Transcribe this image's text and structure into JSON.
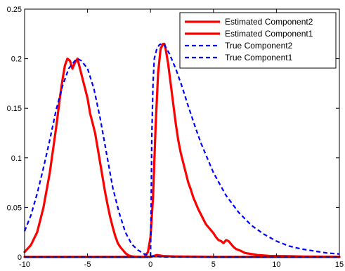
{
  "chart_data": {
    "type": "line",
    "xlim": [
      -10,
      15
    ],
    "ylim": [
      0,
      0.25
    ],
    "xticks": [
      "-10",
      "-5",
      "0",
      "5",
      "10",
      "15"
    ],
    "yticks": [
      "0",
      "0.05",
      "0.1",
      "0.15",
      "0.2",
      "0.25"
    ],
    "xtick_values": [
      -10,
      -5,
      0,
      5,
      10,
      15
    ],
    "ytick_values": [
      0,
      0.05,
      0.1,
      0.15,
      0.2,
      0.25
    ],
    "grid": false,
    "legend_position": "top-right",
    "series": [
      {
        "name": "Estimated Component2",
        "color": "#ff0000",
        "style": "solid",
        "x": [
          -10,
          -9.5,
          -9,
          -8.5,
          -8,
          -7.5,
          -7.2,
          -7,
          -6.8,
          -6.6,
          -6.4,
          -6.2,
          -6,
          -5.8,
          -5.6,
          -5.4,
          -5.2,
          -5,
          -4.8,
          -4.6,
          -4.4,
          -4.2,
          -4,
          -3.8,
          -3.6,
          -3.4,
          -3.2,
          -3,
          -2.8,
          -2.6,
          -2.4,
          -2.2,
          -2,
          -1.8,
          -1.6,
          -1.4,
          -1.2,
          -1,
          -0.8,
          -0.6,
          -0.4,
          -0.2,
          0,
          0.5,
          1,
          2,
          5,
          10,
          15
        ],
        "y": [
          0.005,
          0.012,
          0.025,
          0.05,
          0.085,
          0.13,
          0.16,
          0.178,
          0.193,
          0.2,
          0.198,
          0.19,
          0.196,
          0.2,
          0.19,
          0.18,
          0.17,
          0.16,
          0.145,
          0.135,
          0.125,
          0.11,
          0.095,
          0.08,
          0.065,
          0.052,
          0.04,
          0.03,
          0.021,
          0.014,
          0.01,
          0.007,
          0.004,
          0.002,
          0.001,
          0.0005,
          0.0002,
          0.0001,
          0,
          0,
          0,
          0,
          0,
          0.002,
          0.001,
          0.0005,
          0,
          0,
          0
        ]
      },
      {
        "name": "Estimated Component1",
        "color": "#ff0000",
        "style": "solid",
        "x": [
          -10,
          -5,
          -2,
          -1,
          -0.5,
          -0.2,
          0,
          0.2,
          0.4,
          0.6,
          0.8,
          1,
          1.1,
          1.2,
          1.4,
          1.6,
          1.8,
          2,
          2.2,
          2.4,
          2.6,
          2.8,
          3,
          3.2,
          3.4,
          3.6,
          3.8,
          4,
          4.2,
          4.4,
          4.6,
          4.8,
          5,
          5.2,
          5.4,
          5.6,
          5.8,
          6,
          6.2,
          6.4,
          6.6,
          6.8,
          7,
          7.2,
          7.5,
          8,
          8.5,
          9,
          9.5,
          10,
          11,
          12,
          13,
          15
        ],
        "y": [
          0,
          0,
          0,
          0,
          0,
          0.005,
          0.02,
          0.06,
          0.13,
          0.185,
          0.21,
          0.215,
          0.215,
          0.21,
          0.195,
          0.175,
          0.155,
          0.135,
          0.118,
          0.105,
          0.095,
          0.085,
          0.075,
          0.068,
          0.06,
          0.054,
          0.048,
          0.043,
          0.038,
          0.033,
          0.03,
          0.027,
          0.024,
          0.02,
          0.017,
          0.016,
          0.014,
          0.017,
          0.016,
          0.013,
          0.01,
          0.008,
          0.007,
          0.006,
          0.004,
          0.003,
          0.002,
          0.0015,
          0.001,
          0.001,
          0.0008,
          0.0005,
          0.0003,
          0
        ]
      },
      {
        "name": "True Component2",
        "color": "#0000ff",
        "style": "dashed",
        "x": [
          -10,
          -9.5,
          -9,
          -8.5,
          -8,
          -7.5,
          -7,
          -6.5,
          -6,
          -5.8,
          -5.5,
          -5,
          -4.5,
          -4,
          -3.5,
          -3,
          -2.5,
          -2,
          -1.5,
          -1,
          -0.5,
          0,
          1,
          5,
          15
        ],
        "y": [
          0.026,
          0.042,
          0.064,
          0.09,
          0.118,
          0.148,
          0.172,
          0.19,
          0.198,
          0.2,
          0.198,
          0.19,
          0.17,
          0.14,
          0.105,
          0.07,
          0.045,
          0.025,
          0.013,
          0.007,
          0.003,
          0.001,
          0,
          0,
          0
        ]
      },
      {
        "name": "True Component1",
        "color": "#0000ff",
        "style": "dashed",
        "x": [
          -10,
          -1,
          0,
          0.05,
          0.1,
          0.2,
          0.3,
          0.5,
          0.7,
          0.9,
          1.1,
          1.5,
          2,
          2.5,
          3,
          3.5,
          4,
          5,
          6,
          7,
          8,
          9,
          10,
          11,
          12,
          13,
          14,
          15
        ],
        "y": [
          0,
          0,
          0,
          0.05,
          0.12,
          0.175,
          0.2,
          0.21,
          0.214,
          0.215,
          0.214,
          0.205,
          0.19,
          0.172,
          0.152,
          0.133,
          0.115,
          0.085,
          0.062,
          0.045,
          0.032,
          0.023,
          0.016,
          0.011,
          0.008,
          0.006,
          0.004,
          0.003
        ]
      }
    ]
  }
}
